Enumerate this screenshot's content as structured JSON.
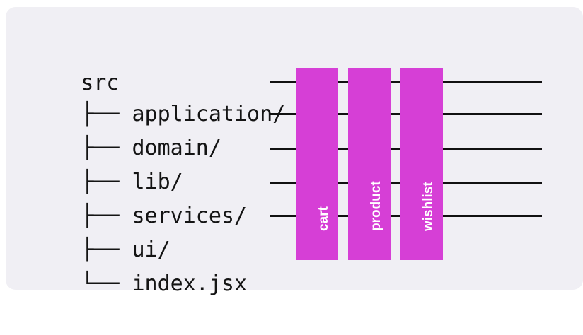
{
  "colors": {
    "background": "#f0eff4",
    "module_bar": "#d63fd6",
    "line": "#111111",
    "text": "#141414",
    "bar_text": "#ffffff"
  },
  "tree": {
    "root": "src",
    "entries": [
      {
        "prefix": "├── ",
        "name": "application/"
      },
      {
        "prefix": "├── ",
        "name": "domain/"
      },
      {
        "prefix": "├── ",
        "name": "lib/"
      },
      {
        "prefix": "├── ",
        "name": "services/"
      },
      {
        "prefix": "├── ",
        "name": "ui/"
      },
      {
        "prefix": "└── ",
        "name": "index.jsx"
      }
    ]
  },
  "modules": [
    {
      "label": "cart"
    },
    {
      "label": "product"
    },
    {
      "label": "wishlist"
    }
  ]
}
